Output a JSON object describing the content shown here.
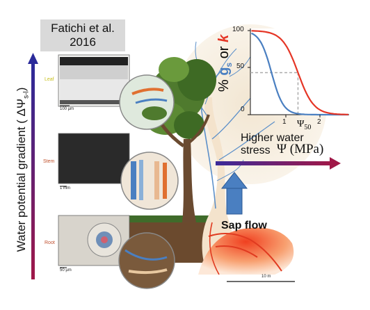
{
  "citation": "Fatichi et al.\n2016",
  "y_axis_label": "Water potential gradient ( ΔΨ",
  "y_axis_label_sub": "s-l",
  "y_axis_label_end": ")",
  "panels": [
    {
      "label": "Leaf",
      "scale": "100 µm",
      "color": "#c8c020"
    },
    {
      "label": "Stem",
      "scale": "1 mm",
      "color": "#c0502a"
    },
    {
      "label": "Root",
      "scale": "50 µm",
      "color": "#c05030"
    }
  ],
  "chart": {
    "y_title_prefix": "% ",
    "y_title_g": "g",
    "y_title_g_sub": "s",
    "y_title_or": " or ",
    "y_title_k": "k",
    "y_ticks": [
      "100",
      "50",
      "0"
    ],
    "x_ticks": [
      "1",
      "2"
    ],
    "psi50": "Ψ",
    "psi50_sub": "50",
    "stress_label": "Higher water stress",
    "psi_axis_label": "Ψ (MPa)",
    "colors": {
      "gs": "#4a7fc1",
      "k": "#e53525"
    }
  },
  "sap_flow_label": "Sap flow",
  "scale_10m": "10 m"
}
